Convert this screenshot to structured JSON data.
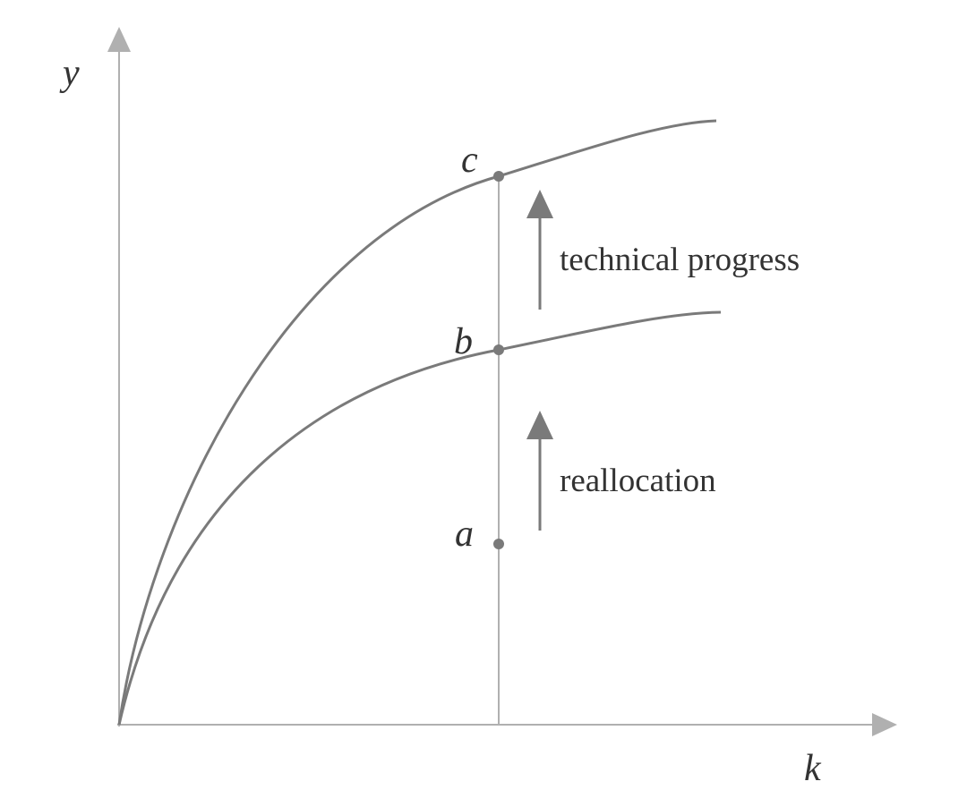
{
  "axes": {
    "y_label": "y",
    "x_label": "k"
  },
  "points": [
    {
      "label": "c"
    },
    {
      "label": "b"
    },
    {
      "label": "a"
    }
  ],
  "annotations": [
    "technical progress",
    "reallocation"
  ]
}
